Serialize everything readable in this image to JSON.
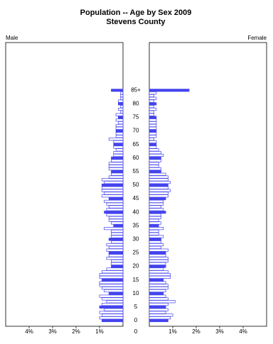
{
  "chart_data": {
    "type": "pyramid",
    "title": "Population -- Age by Sex 2009",
    "subtitle": "Stevens County",
    "categories": [
      "0",
      null,
      null,
      null,
      null,
      "5",
      null,
      null,
      null,
      null,
      "10",
      null,
      null,
      null,
      null,
      "15",
      null,
      null,
      null,
      null,
      "20",
      null,
      null,
      null,
      null,
      "25",
      null,
      null,
      null,
      null,
      "30",
      null,
      null,
      null,
      null,
      "35",
      null,
      null,
      null,
      null,
      "40",
      null,
      null,
      null,
      null,
      "45",
      null,
      null,
      null,
      null,
      "50",
      null,
      null,
      null,
      null,
      "55",
      null,
      null,
      null,
      null,
      "60",
      null,
      null,
      null,
      null,
      "65",
      null,
      null,
      null,
      null,
      "70",
      null,
      null,
      null,
      null,
      "75",
      null,
      null,
      null,
      null,
      "80",
      null,
      null,
      null,
      null,
      "85+"
    ],
    "series": [
      {
        "name": "Male",
        "color": "#4444ee",
        "values": [
          0.9,
          1.0,
          0.9,
          1.0,
          0.8,
          1.0,
          0.9,
          0.7,
          0.9,
          1.0,
          0.6,
          0.8,
          0.9,
          1.0,
          1.0,
          0.9,
          1.0,
          1.0,
          0.9,
          0.7,
          0.5,
          0.5,
          0.5,
          0.7,
          0.6,
          0.6,
          0.7,
          0.6,
          0.7,
          0.5,
          0.6,
          0.5,
          0.5,
          0.5,
          0.8,
          0.4,
          0.5,
          0.6,
          0.6,
          0.7,
          0.8,
          0.7,
          0.6,
          0.7,
          0.8,
          0.6,
          0.9,
          0.8,
          0.9,
          0.9,
          0.9,
          0.8,
          0.9,
          0.6,
          0.5,
          0.5,
          0.6,
          0.6,
          0.6,
          0.5,
          0.5,
          0.4,
          0.4,
          0.3,
          0.4,
          0.4,
          0.4,
          0.6,
          0.3,
          0.3,
          0.3,
          0.3,
          0.3,
          0.2,
          0.3,
          0.2,
          0.3,
          0.1,
          0.2,
          0.1,
          0.2,
          0.2,
          0.1,
          0.1,
          0.1,
          0.5
        ]
      },
      {
        "name": "Female",
        "color": "#4444ee",
        "values": [
          0.8,
          0.9,
          1.0,
          0.7,
          0.8,
          0.7,
          0.8,
          1.1,
          0.8,
          0.7,
          0.6,
          0.7,
          0.8,
          0.8,
          0.7,
          0.6,
          0.9,
          0.9,
          0.8,
          0.6,
          0.7,
          0.7,
          0.8,
          0.8,
          0.7,
          0.7,
          0.8,
          0.5,
          0.6,
          0.5,
          0.5,
          0.6,
          0.4,
          0.4,
          0.6,
          0.4,
          0.5,
          0.4,
          0.5,
          0.5,
          0.7,
          0.6,
          0.5,
          0.6,
          0.6,
          0.7,
          0.8,
          0.8,
          0.9,
          0.8,
          0.8,
          0.9,
          0.8,
          0.8,
          0.7,
          0.5,
          0.5,
          0.4,
          0.4,
          0.5,
          0.5,
          0.6,
          0.5,
          0.4,
          0.3,
          0.3,
          0.3,
          0.2,
          0.3,
          0.3,
          0.3,
          0.3,
          0.3,
          0.3,
          0.3,
          0.3,
          0.2,
          0.2,
          0.3,
          0.2,
          0.3,
          0.2,
          0.3,
          0.2,
          0.3,
          1.7
        ]
      }
    ],
    "xlim": [
      0,
      5
    ],
    "male_xticks": [
      {
        "value": 4,
        "label": "4%"
      },
      {
        "value": 3,
        "label": "3%"
      },
      {
        "value": 2,
        "label": "2%"
      },
      {
        "value": 1,
        "label": "1%"
      },
      0
    ],
    "female_xticks": [
      {
        "value": 1,
        "label": "1%"
      },
      {
        "value": 2,
        "label": "2%"
      },
      {
        "value": 3,
        "label": "3%"
      },
      {
        "value": 4,
        "label": "4%"
      }
    ]
  }
}
